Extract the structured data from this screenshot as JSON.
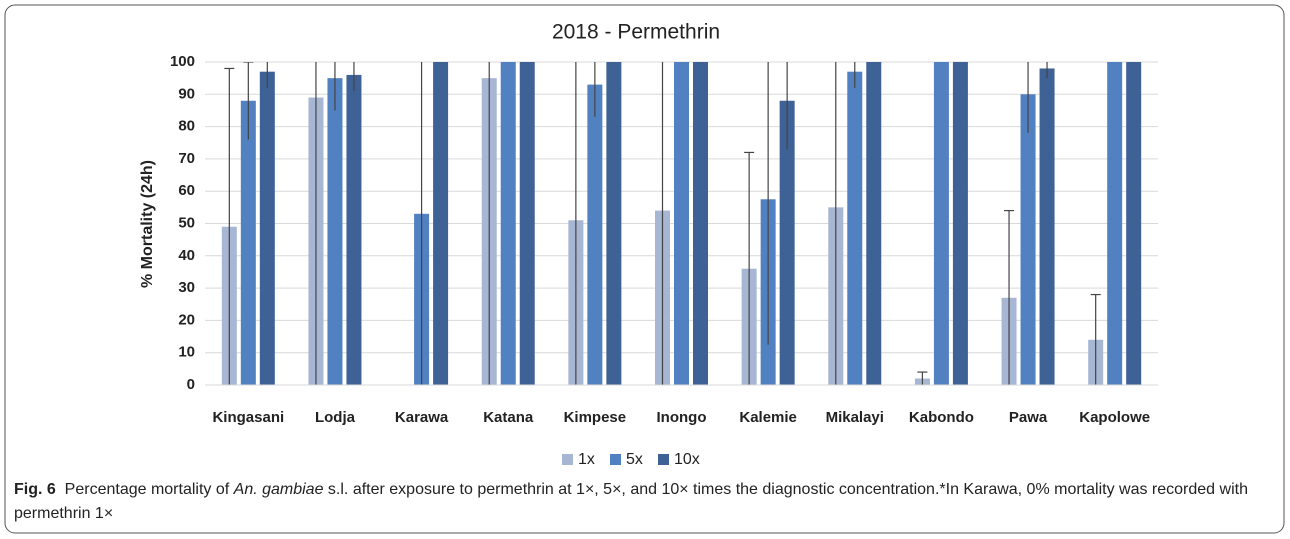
{
  "chart_data": {
    "type": "bar",
    "title": "2018 - Permethrin",
    "ylabel": "% Mortality (24h)",
    "categories": [
      "Kingasani",
      "Lodja",
      "Karawa",
      "Katana",
      "Kimpese",
      "Inongo",
      "Kalemie",
      "Mikalayi",
      "Kabondo",
      "Pawa",
      "Kapolowe"
    ],
    "series": [
      {
        "name": "1x",
        "color": "#a7b6d3",
        "values": [
          49,
          89,
          0,
          95,
          51,
          54,
          36,
          55,
          2,
          27,
          14
        ],
        "errors": [
          49,
          89,
          0,
          95,
          51,
          54,
          36,
          55,
          2,
          27,
          14
        ]
      },
      {
        "name": "5x",
        "color": "#5281c2",
        "values": [
          88,
          95,
          53,
          100,
          93,
          100,
          57.5,
          97,
          100,
          90,
          100
        ],
        "errors": [
          12,
          10,
          53,
          0,
          10,
          0,
          45,
          5,
          0,
          12,
          0
        ]
      },
      {
        "name": "10x",
        "color": "#3e6295",
        "values": [
          97,
          96,
          100,
          100,
          100,
          100,
          88,
          100,
          100,
          98,
          100
        ],
        "errors": [
          5,
          5,
          0,
          0,
          0,
          0,
          15,
          0,
          0,
          3,
          0
        ]
      }
    ],
    "ylim": [
      0,
      100
    ],
    "yticks": [
      0,
      10,
      20,
      30,
      40,
      50,
      60,
      70,
      80,
      90,
      100
    ],
    "grid": true,
    "legend": "bottom"
  },
  "caption": {
    "label": "Fig. 6",
    "text": [
      "Percentage mortality of ",
      "An. gambiae",
      " s.l. after exposure to permethrin at 1×, 5×, and 10× times the diagnostic concentration.*In Karawa, 0% mortality was recorded with permethrin 1×"
    ]
  }
}
